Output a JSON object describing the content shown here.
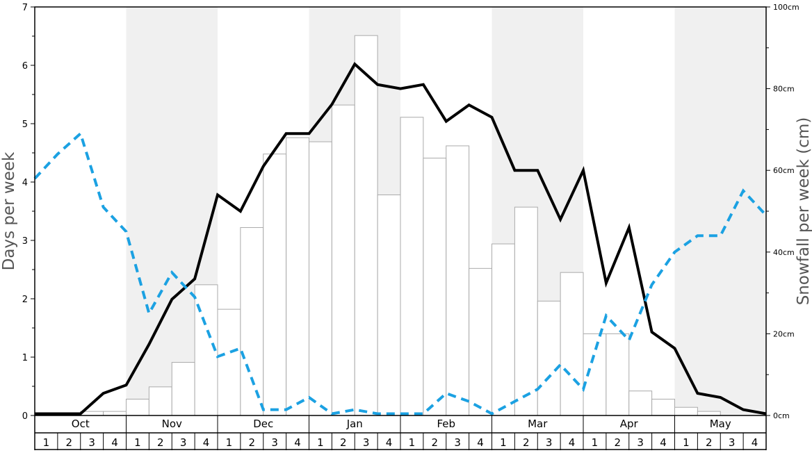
{
  "chart_data": {
    "type": "bar",
    "ylabel_left": "Days per week",
    "ylabel_right": "Snowfall per week (cm)",
    "left_axis": {
      "ylim": [
        0,
        7
      ],
      "ticks": [
        "0",
        "1",
        "2",
        "3",
        "4",
        "5",
        "6",
        "7"
      ]
    },
    "right_axis": {
      "ylim": [
        0,
        100
      ],
      "ticks": [
        "0cm",
        "20cm",
        "40cm",
        "60cm",
        "80cm",
        "100cm"
      ],
      "tick_values": [
        0,
        20,
        40,
        60,
        80,
        100
      ]
    },
    "months": [
      "Oct",
      "Nov",
      "Dec",
      "Jan",
      "Feb",
      "Mar",
      "Apr",
      "May"
    ],
    "week_labels": [
      "1",
      "2",
      "3",
      "4"
    ],
    "shaded_months": [
      "Nov",
      "Jan",
      "Mar",
      "May"
    ],
    "colors": {
      "bars_fill": "#ffffff",
      "bars_stroke": "#aaaaaa",
      "line_black": "#000000",
      "line_dashed": "#1ba1e2",
      "shade": "#f0f0f0"
    },
    "series": [
      {
        "type": "bar",
        "axis": "right",
        "values": [
          0,
          0,
          1,
          1,
          4,
          7,
          13,
          32,
          26,
          46,
          64,
          68,
          67,
          76,
          93,
          54,
          73,
          63,
          66,
          36,
          42,
          51,
          28,
          35,
          20,
          20,
          6,
          4,
          2,
          1,
          0,
          0
        ]
      },
      {
        "type": "line",
        "style": "solid",
        "axis": "left",
        "values": [
          0.03,
          0.03,
          0.03,
          0.38,
          0.52,
          1.22,
          1.99,
          2.34,
          3.78,
          3.5,
          4.27,
          4.83,
          4.83,
          5.33,
          6.02,
          5.67,
          5.6,
          5.67,
          5.04,
          5.32,
          5.11,
          4.2,
          4.2,
          3.36,
          4.2,
          2.27,
          3.22,
          1.43,
          1.15,
          0.38,
          0.31,
          0.1,
          0.03
        ]
      },
      {
        "type": "line",
        "style": "dashed",
        "axis": "left",
        "values": [
          4.06,
          4.48,
          4.83,
          3.57,
          3.15,
          1.75,
          2.45,
          2.03,
          1.01,
          1.15,
          0.1,
          0.1,
          0.31,
          0.03,
          0.1,
          0.03,
          0.03,
          0.03,
          0.38,
          0.24,
          0.03,
          0.24,
          0.45,
          0.87,
          0.45,
          1.71,
          1.29,
          2.24,
          2.8,
          3.08,
          3.08,
          3.85,
          3.43
        ]
      }
    ]
  }
}
